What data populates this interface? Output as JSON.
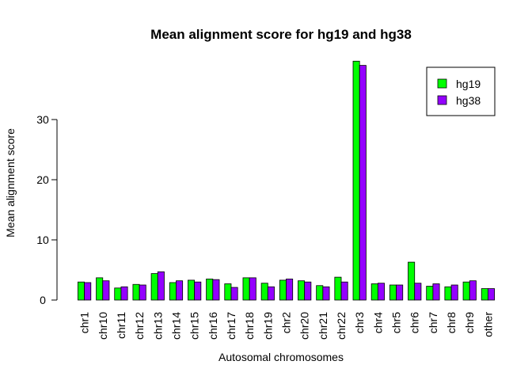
{
  "chart_data": {
    "type": "bar",
    "title": "Mean alignment score for hg19 and hg38",
    "xlabel": "Autosomal chromosomes",
    "ylabel": "Mean alignment score",
    "ylim": [
      0,
      40
    ],
    "yticks": [
      0,
      10,
      20,
      30
    ],
    "grid": false,
    "legend_position": "top-right",
    "categories": [
      "chr1",
      "chr10",
      "chr11",
      "chr12",
      "chr13",
      "chr14",
      "chr15",
      "chr16",
      "chr17",
      "chr18",
      "chr19",
      "chr2",
      "chr20",
      "chr21",
      "chr22",
      "chr3",
      "chr4",
      "chr5",
      "chr6",
      "chr7",
      "chr8",
      "chr9",
      "other"
    ],
    "series": [
      {
        "name": "hg19",
        "color": "#00ff00",
        "values": [
          3.0,
          3.7,
          2.0,
          2.6,
          4.4,
          2.9,
          3.3,
          3.5,
          2.7,
          3.7,
          2.8,
          3.3,
          3.2,
          2.4,
          3.8,
          39.7,
          2.7,
          2.5,
          6.3,
          2.3,
          2.2,
          3.0,
          1.9
        ]
      },
      {
        "name": "hg38",
        "color": "#9400ff",
        "values": [
          2.9,
          3.2,
          2.2,
          2.5,
          4.7,
          3.2,
          3.0,
          3.4,
          2.1,
          3.7,
          2.2,
          3.5,
          3.0,
          2.2,
          3.0,
          39.0,
          2.8,
          2.5,
          2.8,
          2.7,
          2.5,
          3.2,
          1.9
        ]
      }
    ]
  }
}
